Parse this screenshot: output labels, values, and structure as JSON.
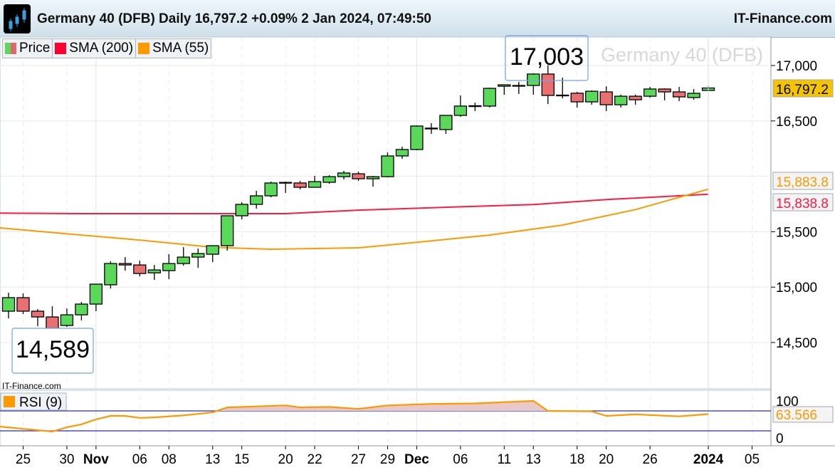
{
  "header": {
    "title": "Germany 40 (DFB) Daily 16,797.2 +0.09% 2 Jan 2024, 07:49:50",
    "brand": "IT-Finance.com",
    "logo_icon": "candlestick-icon"
  },
  "legend": [
    {
      "label": "Price",
      "color": "#5ad85a",
      "color2": "#e06868"
    },
    {
      "label": "SMA (200)",
      "color": "#ff0033"
    },
    {
      "label": "SMA (55)",
      "color": "#ff9900"
    }
  ],
  "watermark_text": "Germany 40 (DFB)",
  "annotations": {
    "high": "17,003",
    "low": "14,589"
  },
  "source_text": "IT-Finance.com",
  "rsi_legend": "RSI (9)",
  "price_labels": {
    "last": "16,797.2",
    "sma55": "15,883.8",
    "sma200": "15,838.8",
    "rsi": "63.566"
  },
  "colors": {
    "up": "#5ad85a",
    "down": "#e87070",
    "sma200": "#ff1a40",
    "sma55": "#ff9900",
    "rsi": "#ff9900",
    "rsi_levels": "#2a2ab0",
    "last_bg": "#f5c400"
  },
  "chart_data": [
    {
      "type": "candlestick",
      "ylim": [
        14250,
        17250
      ],
      "yticks": [
        "17,000",
        "16,500",
        "15,500",
        "15,000",
        "14,500"
      ],
      "ytick_values": [
        17000,
        16500,
        15500,
        15000,
        14500
      ],
      "grid": true,
      "dates": [
        "24 Oct",
        "25 Oct",
        "26 Oct",
        "27 Oct",
        "30 Oct",
        "31 Oct",
        "1 Nov",
        "2 Nov",
        "3 Nov",
        "6 Nov",
        "7 Nov",
        "8 Nov",
        "9 Nov",
        "10 Nov",
        "13 Nov",
        "14 Nov",
        "15 Nov",
        "16 Nov",
        "17 Nov",
        "20 Nov",
        "21 Nov",
        "22 Nov",
        "23 Nov",
        "24 Nov",
        "27 Nov",
        "28 Nov",
        "29 Nov",
        "30 Nov",
        "1 Dec",
        "4 Dec",
        "5 Dec",
        "6 Dec",
        "7 Dec",
        "8 Dec",
        "11 Dec",
        "12 Dec",
        "13 Dec",
        "14 Dec",
        "15 Dec",
        "18 Dec",
        "19 Dec",
        "20 Dec",
        "21 Dec",
        "22 Dec",
        "26 Dec",
        "27 Dec",
        "28 Dec",
        "29 Dec",
        "2 Jan"
      ],
      "ohlc": [
        [
          14783,
          14950,
          14718,
          14905
        ],
        [
          14905,
          14944,
          14757,
          14783
        ],
        [
          14783,
          14802,
          14648,
          14731
        ],
        [
          14731,
          14828,
          14589,
          14628
        ],
        [
          14654,
          14808,
          14641,
          14750
        ],
        [
          14750,
          14866,
          14699,
          14847
        ],
        [
          14847,
          15027,
          14783,
          15027
        ],
        [
          15021,
          15232,
          14988,
          15213
        ],
        [
          15213,
          15271,
          15149,
          15200
        ],
        [
          15200,
          15239,
          15097,
          15123
        ],
        [
          15129,
          15200,
          15065,
          15155
        ],
        [
          15149,
          15297,
          15072,
          15213
        ],
        [
          15213,
          15361,
          15194,
          15271
        ],
        [
          15271,
          15348,
          15174,
          15303
        ],
        [
          15297,
          15374,
          15226,
          15374
        ],
        [
          15374,
          15644,
          15329,
          15644
        ],
        [
          15644,
          15766,
          15612,
          15747
        ],
        [
          15747,
          15869,
          15708,
          15824
        ],
        [
          15824,
          15952,
          15811,
          15940
        ],
        [
          15940,
          15952,
          15850,
          15945
        ],
        [
          15940,
          15959,
          15882,
          15901
        ],
        [
          15901,
          16004,
          15901,
          15952
        ],
        [
          15946,
          16010,
          15933,
          15997
        ],
        [
          15997,
          16049,
          15972,
          16030
        ],
        [
          16023,
          16042,
          15959,
          15978
        ],
        [
          15978,
          16004,
          15907,
          15997
        ],
        [
          15997,
          16216,
          15991,
          16184
        ],
        [
          16184,
          16267,
          16158,
          16242
        ],
        [
          16242,
          16460,
          16235,
          16454
        ],
        [
          16428,
          16480,
          16383,
          16435
        ],
        [
          16422,
          16550,
          16383,
          16550
        ],
        [
          16550,
          16730,
          16537,
          16634
        ],
        [
          16630,
          16666,
          16589,
          16637
        ],
        [
          16634,
          16800,
          16621,
          16794
        ],
        [
          16813,
          16826,
          16736,
          16826
        ],
        [
          16820,
          16852,
          16743,
          16820
        ],
        [
          16820,
          16929,
          16736,
          16923
        ],
        [
          16923,
          17003,
          16653,
          16730
        ],
        [
          16730,
          16890,
          16704,
          16733
        ],
        [
          16750,
          16762,
          16621,
          16672
        ],
        [
          16672,
          16775,
          16646,
          16768
        ],
        [
          16762,
          16813,
          16589,
          16646
        ],
        [
          16646,
          16737,
          16621,
          16723
        ],
        [
          16723,
          16737,
          16646,
          16691
        ],
        [
          16723,
          16807,
          16710,
          16788
        ],
        [
          16788,
          16794,
          16685,
          16762
        ],
        [
          16762,
          16807,
          16679,
          16717
        ],
        [
          16711,
          16788,
          16691,
          16749
        ],
        [
          16775,
          16820,
          16768,
          16797.2
        ]
      ],
      "ohlc_order": [
        "open",
        "high",
        "low",
        "close"
      ],
      "sma200": [
        [
          "24 Oct",
          15668
        ],
        [
          "31 Oct",
          15663
        ],
        [
          "20 Nov",
          15663
        ],
        [
          "27 Nov",
          15695
        ],
        [
          "6 Dec",
          15725
        ],
        [
          "13 Dec",
          15745
        ],
        [
          "20 Dec",
          15790
        ],
        [
          "2 Jan",
          15838.8
        ]
      ],
      "sma55": [
        [
          "24 Oct",
          15535
        ],
        [
          "31 Oct",
          15470
        ],
        [
          "6 Nov",
          15425
        ],
        [
          "13 Nov",
          15360
        ],
        [
          "17 Nov",
          15342
        ],
        [
          "27 Nov",
          15355
        ],
        [
          "1 Dec",
          15405
        ],
        [
          "8 Dec",
          15470
        ],
        [
          "15 Dec",
          15560
        ],
        [
          "22 Dec",
          15700
        ],
        [
          "2 Jan",
          15883.8
        ]
      ],
      "xlabels": [
        [
          "25 Oct",
          "25",
          false
        ],
        [
          "30 Oct",
          "30",
          false
        ],
        [
          "1 Nov",
          "Nov",
          true
        ],
        [
          "6 Nov",
          "06",
          false
        ],
        [
          "8 Nov",
          "08",
          false
        ],
        [
          "13 Nov",
          "13",
          false
        ],
        [
          "15 Nov",
          "15",
          false
        ],
        [
          "20 Nov",
          "20",
          false
        ],
        [
          "22 Nov",
          "22",
          false
        ],
        [
          "27 Nov",
          "27",
          false
        ],
        [
          "29 Nov",
          "29",
          false
        ],
        [
          "1 Dec",
          "Dec",
          true
        ],
        [
          "6 Dec",
          "06",
          false
        ],
        [
          "11 Dec",
          "11",
          false
        ],
        [
          "13 Dec",
          "13",
          false
        ],
        [
          "18 Dec",
          "18",
          false
        ],
        [
          "20 Dec",
          "20",
          false
        ],
        [
          "26 Dec",
          "26",
          false
        ],
        [
          "2 Jan",
          "2024",
          true
        ],
        [
          "5 Jan",
          "05",
          false
        ]
      ]
    },
    {
      "type": "line",
      "name": "RSI (9)",
      "ylim": [
        0,
        100
      ],
      "yticks": [
        "100",
        "0"
      ],
      "levels": [
        70,
        30
      ],
      "values": [
        [
          0,
          38.6
        ],
        [
          1,
          34
        ],
        [
          3,
          28.5
        ],
        [
          4,
          37
        ],
        [
          5,
          43
        ],
        [
          6,
          53
        ],
        [
          7,
          60
        ],
        [
          8,
          60
        ],
        [
          9,
          56
        ],
        [
          10,
          57
        ],
        [
          12,
          61
        ],
        [
          14,
          67
        ],
        [
          15,
          77
        ],
        [
          19,
          81
        ],
        [
          20,
          77
        ],
        [
          22,
          78
        ],
        [
          24,
          74
        ],
        [
          26,
          81
        ],
        [
          29,
          84
        ],
        [
          32,
          85
        ],
        [
          36,
          90
        ],
        [
          37,
          70
        ],
        [
          40,
          69
        ],
        [
          41,
          60
        ],
        [
          43,
          63
        ],
        [
          46,
          59
        ],
        [
          48,
          63.566
        ]
      ]
    }
  ]
}
